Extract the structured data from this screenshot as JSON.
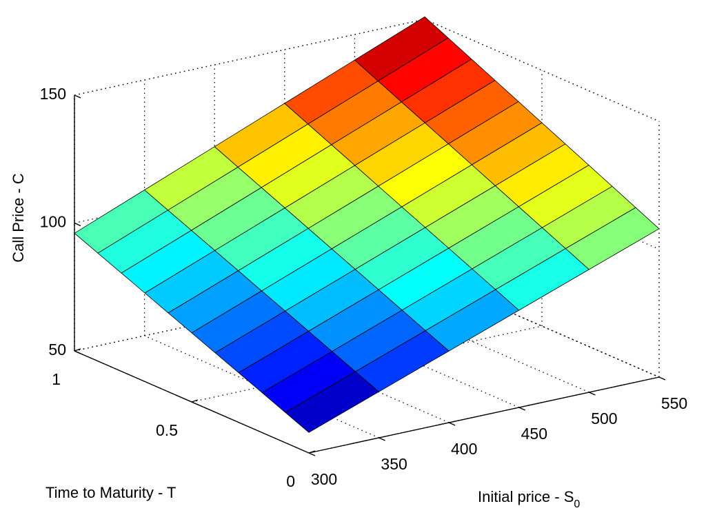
{
  "chart_data": {
    "type": "surface",
    "title": "",
    "xlabel": "Initial price - S",
    "xlabel_subscript": "0",
    "ylabel": "Time to Maturity - T",
    "zlabel": "Call Price - C",
    "x_ticks": [
      "300",
      "350",
      "400",
      "450",
      "500",
      "550"
    ],
    "y_ticks": [
      "0",
      "0.5",
      "1"
    ],
    "z_ticks": [
      "50",
      "100",
      "150"
    ],
    "xlim": [
      300,
      550
    ],
    "ylim": [
      0,
      1
    ],
    "zlim": [
      50,
      150
    ],
    "colormap": "jet",
    "grid": true,
    "x_grid_values": [
      300,
      350,
      400,
      450,
      500,
      550
    ],
    "y_grid_values": [
      0,
      0.1,
      0.2,
      0.3,
      0.4,
      0.5,
      0.6,
      0.7,
      0.8,
      0.9,
      1.0
    ],
    "corner_values": [
      {
        "x": 300,
        "y": 0,
        "z": 58
      },
      {
        "x": 550,
        "y": 0,
        "z": 108
      },
      {
        "x": 300,
        "y": 1,
        "z": 96
      },
      {
        "x": 550,
        "y": 1,
        "z": 151
      }
    ]
  }
}
